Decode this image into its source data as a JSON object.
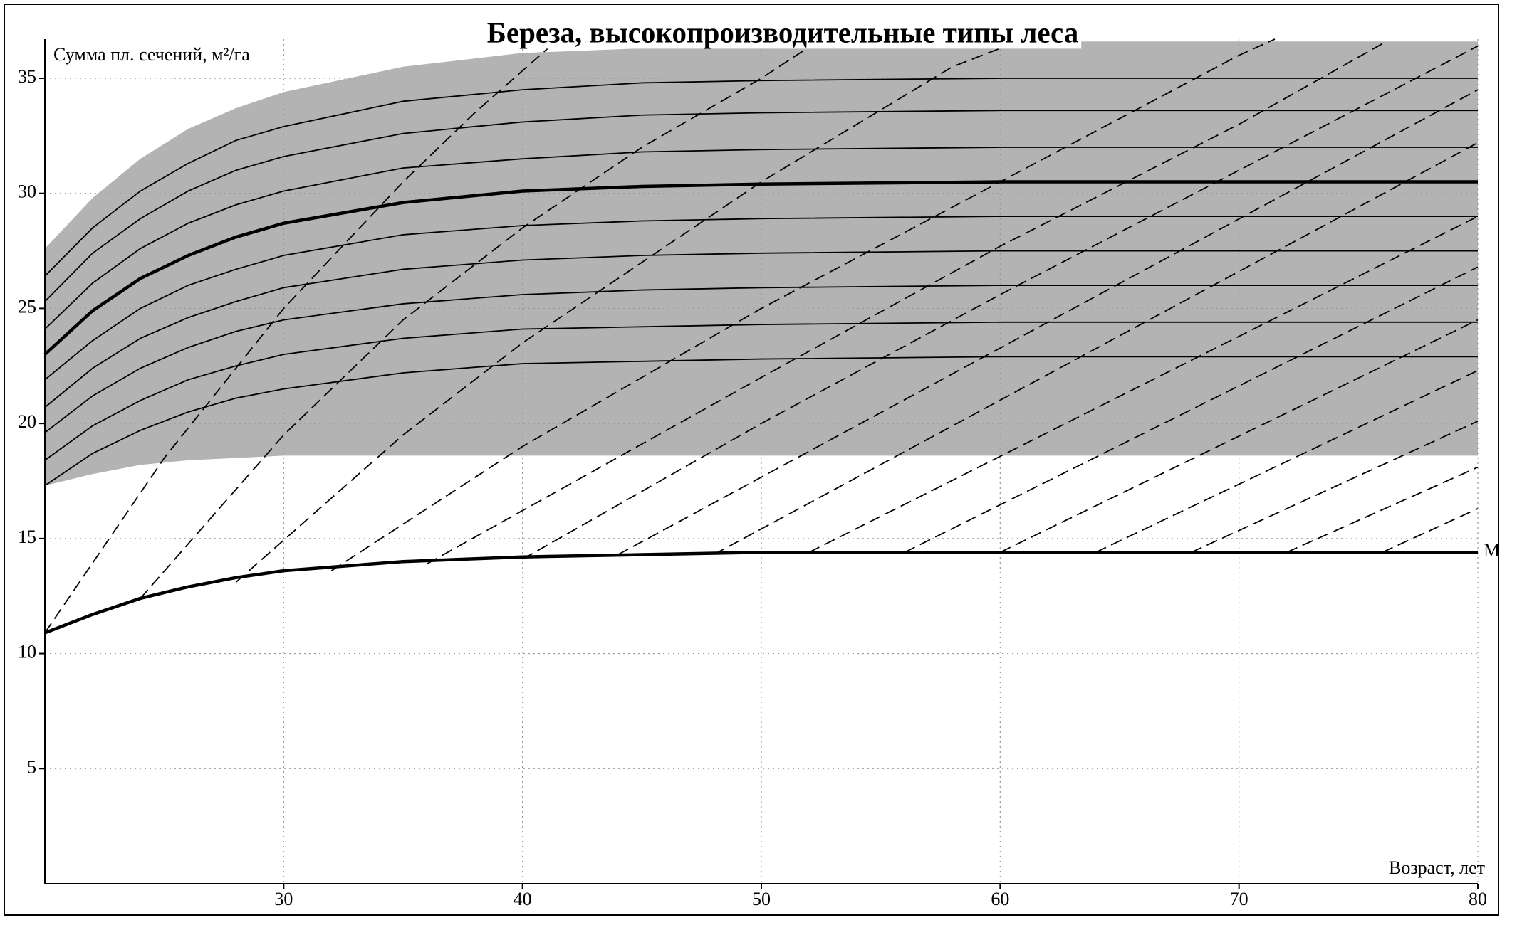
{
  "chart_data": {
    "type": "line",
    "title": "Береза, высокопроизводительные типы леса",
    "ylabel": "Сумма пл. сечений, м²/га",
    "xlabel": "Возраст, лет",
    "xlim": [
      20,
      80
    ],
    "ylim": [
      0,
      36.7
    ],
    "xticks": [
      30,
      40,
      50,
      60,
      70,
      80
    ],
    "yticks": [
      5,
      10,
      15,
      20,
      25,
      30,
      35
    ],
    "grid": true,
    "x": [
      20,
      22,
      24,
      26,
      28,
      30,
      35,
      40,
      45,
      50,
      60,
      70,
      80
    ],
    "band": {
      "color": "#b3b3b3",
      "upper": [
        27.6,
        29.8,
        31.5,
        32.8,
        33.7,
        34.4,
        35.5,
        36.1,
        36.3,
        36.5,
        36.6,
        36.6,
        36.6
      ],
      "lower": [
        17.3,
        17.8,
        18.2,
        18.4,
        18.5,
        18.6,
        18.6,
        18.6,
        18.6,
        18.6,
        18.6,
        18.6,
        18.6
      ]
    },
    "series": [
      {
        "style": "solid",
        "color": "#000000",
        "values": [
          17.3,
          18.7,
          19.7,
          20.5,
          21.1,
          21.5,
          22.2,
          22.6,
          22.7,
          22.8,
          22.9,
          22.9,
          22.9
        ]
      },
      {
        "style": "solid",
        "color": "#000000",
        "values": [
          18.4,
          19.9,
          21.0,
          21.9,
          22.5,
          23.0,
          23.7,
          24.1,
          24.2,
          24.3,
          24.4,
          24.4,
          24.4
        ]
      },
      {
        "style": "solid",
        "color": "#000000",
        "values": [
          19.6,
          21.2,
          22.4,
          23.3,
          24.0,
          24.5,
          25.2,
          25.6,
          25.8,
          25.9,
          26.0,
          26.0,
          26.0
        ]
      },
      {
        "style": "solid",
        "color": "#000000",
        "values": [
          20.7,
          22.4,
          23.7,
          24.6,
          25.3,
          25.9,
          26.7,
          27.1,
          27.3,
          27.4,
          27.5,
          27.5,
          27.5
        ]
      },
      {
        "style": "solid",
        "color": "#000000",
        "values": [
          21.9,
          23.6,
          25.0,
          26.0,
          26.7,
          27.3,
          28.2,
          28.6,
          28.8,
          28.9,
          29.0,
          29.0,
          29.0
        ]
      },
      {
        "style": "bold",
        "color": "#000000",
        "values": [
          23.0,
          24.9,
          26.3,
          27.3,
          28.1,
          28.7,
          29.6,
          30.1,
          30.3,
          30.4,
          30.5,
          30.5,
          30.5
        ]
      },
      {
        "style": "solid",
        "color": "#000000",
        "values": [
          24.1,
          26.1,
          27.6,
          28.7,
          29.5,
          30.1,
          31.1,
          31.5,
          31.8,
          31.9,
          32.0,
          32.0,
          32.0
        ]
      },
      {
        "style": "solid",
        "color": "#000000",
        "values": [
          25.3,
          27.4,
          28.9,
          30.1,
          31.0,
          31.6,
          32.6,
          33.1,
          33.4,
          33.5,
          33.6,
          33.6,
          33.6
        ]
      },
      {
        "style": "solid",
        "color": "#000000",
        "values": [
          26.4,
          28.5,
          30.1,
          31.3,
          32.3,
          32.9,
          34.0,
          34.5,
          34.8,
          34.9,
          35.0,
          35.0,
          35.0
        ]
      },
      {
        "style": "bold",
        "color": "#000000",
        "label": "М",
        "values": [
          10.9,
          11.7,
          12.4,
          12.9,
          13.3,
          13.6,
          14.0,
          14.2,
          14.3,
          14.4,
          14.4,
          14.4,
          14.4
        ]
      },
      {
        "style": "dashed",
        "color": "#000000",
        "x": [
          20,
          25,
          30,
          35,
          38,
          41.5
        ],
        "values": [
          10.9,
          18.5,
          25,
          30.5,
          33.5,
          36.7
        ]
      },
      {
        "style": "dashed",
        "color": "#000000",
        "x": [
          24,
          30,
          35,
          40,
          45,
          50,
          52.5
        ],
        "values": [
          12.4,
          19.5,
          24.5,
          28.5,
          32,
          35,
          36.7
        ]
      },
      {
        "style": "dashed",
        "color": "#000000",
        "x": [
          28,
          35,
          40,
          50,
          58,
          61
        ],
        "values": [
          13.1,
          19.5,
          23.5,
          30.5,
          35.5,
          36.7
        ]
      },
      {
        "style": "dashed",
        "color": "#000000",
        "x": [
          32,
          40,
          50,
          60,
          70,
          71.5
        ],
        "values": [
          13.6,
          19,
          25,
          30.5,
          36,
          36.7
        ]
      },
      {
        "style": "dashed",
        "color": "#000000",
        "x": [
          36,
          50,
          60,
          70,
          76
        ],
        "values": [
          13.9,
          22,
          27.7,
          33,
          36.5
        ]
      },
      {
        "style": "dashed",
        "color": "#000000",
        "x": [
          40,
          50,
          60,
          70,
          80
        ],
        "values": [
          14.1,
          20,
          25.6,
          31,
          36.4
        ]
      },
      {
        "style": "dashed",
        "color": "#000000",
        "x": [
          44,
          80
        ],
        "values": [
          14.3,
          34.5
        ]
      },
      {
        "style": "dashed",
        "color": "#000000",
        "x": [
          48,
          80
        ],
        "values": [
          14.3,
          32.2
        ]
      },
      {
        "style": "dashed",
        "color": "#000000",
        "x": [
          52,
          80
        ],
        "values": [
          14.4,
          29.0
        ]
      },
      {
        "style": "dashed",
        "color": "#000000",
        "x": [
          56,
          80
        ],
        "values": [
          14.4,
          26.8
        ]
      },
      {
        "style": "dashed",
        "color": "#000000",
        "x": [
          60,
          80
        ],
        "values": [
          14.4,
          24.5
        ]
      },
      {
        "style": "dashed",
        "color": "#000000",
        "x": [
          64,
          80
        ],
        "values": [
          14.4,
          22.3
        ]
      },
      {
        "style": "dashed",
        "color": "#000000",
        "x": [
          68,
          80
        ],
        "values": [
          14.4,
          20.1
        ]
      },
      {
        "style": "dashed",
        "color": "#000000",
        "x": [
          72,
          80
        ],
        "values": [
          14.4,
          18.1
        ]
      },
      {
        "style": "dashed",
        "color": "#000000",
        "x": [
          76,
          80
        ],
        "values": [
          14.4,
          16.3
        ]
      }
    ]
  }
}
